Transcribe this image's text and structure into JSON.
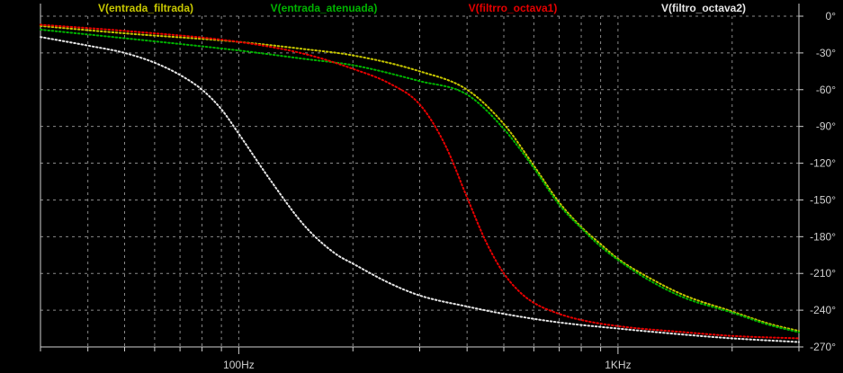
{
  "window": {
    "background": "#000000",
    "grid_color": "#8a8a8a",
    "axis_color": "#cfcfcf"
  },
  "chart_data": {
    "type": "line",
    "title": "",
    "xlabel": "",
    "ylabel": "",
    "x_scale": "log",
    "xlim": [
      30,
      3000
    ],
    "ylim": [
      -270,
      0
    ],
    "grid": true,
    "line_style": "dotted",
    "legend_placement": "top",
    "x_tick_labels": [
      {
        "value": 100,
        "label": "100Hz"
      },
      {
        "value": 1000,
        "label": "1KHz"
      }
    ],
    "y_tick_labels": [
      {
        "value": 0,
        "label": "0°"
      },
      {
        "value": -30,
        "label": "-30°"
      },
      {
        "value": -60,
        "label": "-60°"
      },
      {
        "value": -90,
        "label": "-90°"
      },
      {
        "value": -120,
        "label": "-120°"
      },
      {
        "value": -150,
        "label": "-150°"
      },
      {
        "value": -180,
        "label": "-180°"
      },
      {
        "value": -210,
        "label": "-210°"
      },
      {
        "value": -240,
        "label": "-240°"
      },
      {
        "value": -270,
        "label": "-270°"
      }
    ],
    "series": [
      {
        "name": "V(entrada_filtrada)",
        "color": "#c8c800",
        "x": [
          30,
          50,
          100,
          150,
          200,
          300,
          400,
          500,
          600,
          700,
          800,
          900,
          1000,
          1200,
          1500,
          2000,
          2500,
          3000
        ],
        "y": [
          -8,
          -14,
          -21,
          -27,
          -32,
          -45,
          -60,
          -88,
          -122,
          -152,
          -172,
          -186,
          -198,
          -213,
          -228,
          -241,
          -251,
          -257
        ]
      },
      {
        "name": "V(entrada_atenuada)",
        "color": "#00b400",
        "x": [
          30,
          50,
          100,
          150,
          200,
          300,
          400,
          500,
          600,
          700,
          800,
          900,
          1000,
          1200,
          1500,
          2000,
          2500,
          3000
        ],
        "y": [
          -11,
          -18,
          -28,
          -35,
          -40,
          -53,
          -64,
          -92,
          -124,
          -154,
          -173,
          -188,
          -199,
          -215,
          -230,
          -242,
          -252,
          -258
        ]
      },
      {
        "name": "V(filtrro_octava1)",
        "color": "#e60000",
        "x": [
          30,
          50,
          100,
          150,
          200,
          250,
          300,
          350,
          400,
          450,
          500,
          550,
          600,
          700,
          800,
          1000,
          1500,
          2000,
          3000
        ],
        "y": [
          -7,
          -12,
          -21,
          -31,
          -43,
          -55,
          -72,
          -105,
          -148,
          -185,
          -210,
          -225,
          -234,
          -243,
          -248,
          -253,
          -258,
          -261,
          -263
        ]
      },
      {
        "name": "V(filtro_octava2)",
        "color": "#e6e6e6",
        "x": [
          30,
          40,
          50,
          60,
          70,
          80,
          90,
          100,
          120,
          150,
          180,
          200,
          250,
          300,
          400,
          500,
          700,
          1000,
          1500,
          2000,
          3000
        ],
        "y": [
          -17,
          -24,
          -30,
          -38,
          -48,
          -60,
          -76,
          -96,
          -132,
          -172,
          -194,
          -202,
          -218,
          -228,
          -237,
          -243,
          -250,
          -255,
          -260,
          -263,
          -266
        ]
      }
    ]
  }
}
